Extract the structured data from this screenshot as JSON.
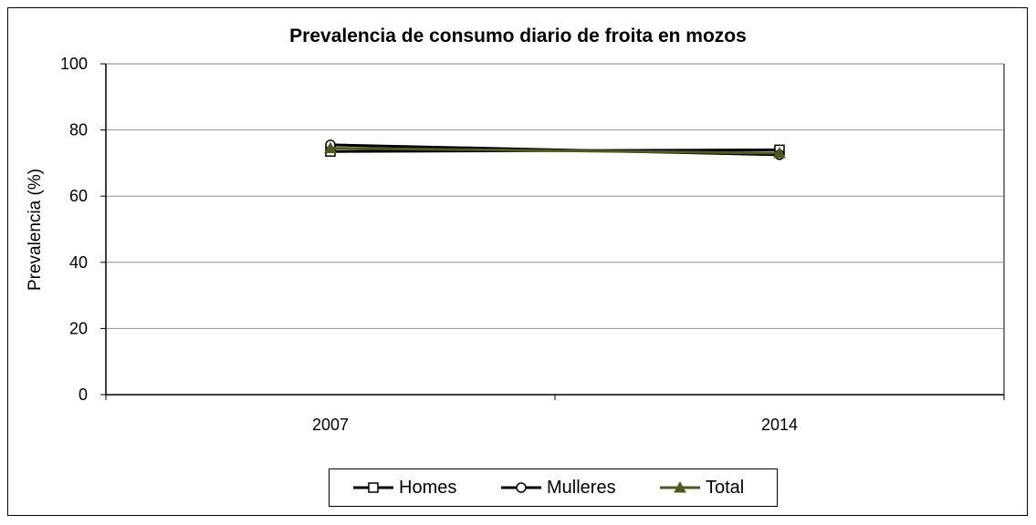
{
  "chart_data": {
    "type": "line",
    "title": "Prevalencia de consumo diario de froita en mozos",
    "xlabel": "",
    "ylabel": "Prevalencia (%)",
    "categories": [
      "2007",
      "2014"
    ],
    "ylim": [
      0,
      100
    ],
    "yticks": [
      "0",
      "20",
      "40",
      "60",
      "80",
      "100"
    ],
    "grid": true,
    "legend_position": "bottom",
    "series": [
      {
        "name": "Homes",
        "values": [
          73.5,
          74.0
        ],
        "color": "#000000",
        "marker": "square"
      },
      {
        "name": "Mulleres",
        "values": [
          75.5,
          72.5
        ],
        "color": "#000000",
        "marker": "circle"
      },
      {
        "name": "Total",
        "values": [
          74.5,
          73.0
        ],
        "color": "#4f5a1e",
        "marker": "triangle"
      }
    ]
  }
}
